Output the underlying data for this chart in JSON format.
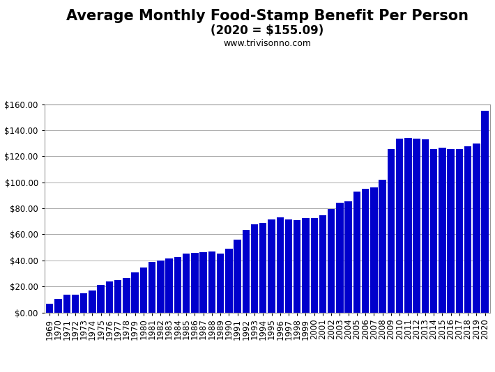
{
  "title_line1": "Average Monthly Food-Stamp Benefit Per Person",
  "title_line2": "(2020 = $155.09)",
  "subtitle": "www.trivisonno.com",
  "bar_color": "#0000CC",
  "background_color": "#FFFFFF",
  "years": [
    1969,
    1970,
    1971,
    1972,
    1973,
    1974,
    1975,
    1976,
    1977,
    1978,
    1979,
    1980,
    1981,
    1982,
    1983,
    1984,
    1985,
    1986,
    1987,
    1988,
    1989,
    1990,
    1991,
    1992,
    1993,
    1994,
    1995,
    1996,
    1997,
    1998,
    1999,
    2000,
    2001,
    2002,
    2003,
    2004,
    2005,
    2006,
    2007,
    2008,
    2009,
    2010,
    2011,
    2012,
    2013,
    2014,
    2015,
    2016,
    2017,
    2018,
    2019,
    2020
  ],
  "values": [
    6.63,
    10.55,
    13.55,
    13.49,
    14.64,
    16.73,
    21.4,
    23.96,
    24.71,
    26.77,
    30.59,
    34.47,
    38.75,
    39.73,
    41.73,
    42.75,
    44.99,
    45.65,
    46.1,
    47.09,
    45.14,
    49.0,
    55.98,
    63.47,
    67.67,
    68.94,
    71.27,
    73.05,
    71.27,
    71.12,
    72.27,
    72.62,
    74.82,
    79.67,
    84.08,
    85.31,
    92.81,
    94.75,
    96.18,
    101.78,
    125.42,
    133.79,
    133.85,
    133.41,
    133.07,
    125.35,
    126.39,
    125.51,
    125.51,
    127.53,
    129.83,
    155.09
  ],
  "ylim": [
    0,
    160
  ],
  "yticks": [
    0,
    20,
    40,
    60,
    80,
    100,
    120,
    140,
    160
  ],
  "title_fontsize": 15,
  "subtitle_fontsize": 12,
  "url_fontsize": 9,
  "tick_fontsize": 8.5,
  "border_color": "#999999"
}
